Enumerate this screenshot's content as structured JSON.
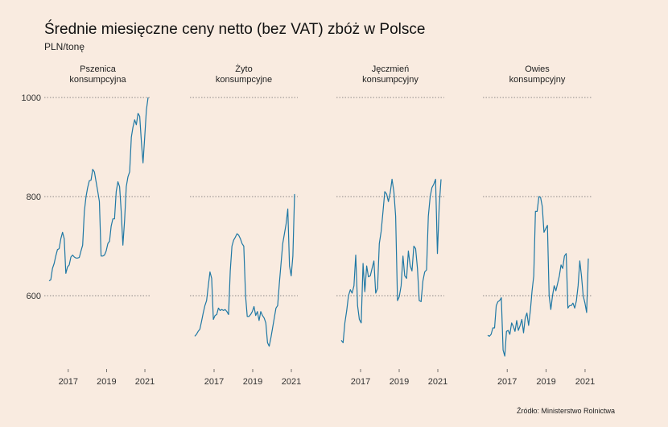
{
  "title": "Średnie miesięczne ceny netto (bez VAT) zbóż w Polsce",
  "subtitle": "PLN/tonę",
  "source": "Źródło: Ministerstwo Rolnictwa",
  "line_color": "#1f78a4",
  "chart_data": {
    "type": "line",
    "x_ticks": [
      "2017",
      "2019",
      "2021"
    ],
    "y_ticks": [
      600,
      800,
      1000
    ],
    "ylim": [
      470,
      1010
    ],
    "x_start": "2016-01",
    "grid": "horizontal dotted",
    "panels": [
      {
        "name_lines": [
          "Pszenica",
          "konsumpcyjna"
        ],
        "values": [
          630,
          632,
          655,
          665,
          680,
          693,
          695,
          715,
          728,
          715,
          645,
          658,
          662,
          678,
          682,
          678,
          676,
          676,
          677,
          690,
          702,
          770,
          800,
          818,
          832,
          833,
          855,
          850,
          830,
          810,
          790,
          680,
          680,
          682,
          690,
          705,
          710,
          740,
          755,
          755,
          810,
          830,
          820,
          770,
          702,
          752,
          820,
          840,
          850,
          920,
          940,
          955,
          945,
          968,
          962,
          910,
          868,
          920,
          975,
          1000
        ]
      },
      {
        "name_lines": [
          "Żyto",
          "konsumpcyjne"
        ],
        "values": [
          518,
          522,
          528,
          532,
          548,
          565,
          580,
          590,
          620,
          648,
          635,
          552,
          560,
          562,
          575,
          570,
          572,
          570,
          572,
          568,
          562,
          650,
          700,
          712,
          718,
          725,
          722,
          715,
          705,
          700,
          600,
          558,
          558,
          562,
          568,
          578,
          560,
          568,
          550,
          568,
          560,
          555,
          545,
          505,
          498,
          515,
          535,
          555,
          575,
          580,
          625,
          665,
          705,
          725,
          745,
          775,
          660,
          640,
          680,
          805
        ]
      },
      {
        "name_lines": [
          "Jęczmień",
          "konsumpcyjny"
        ],
        "values": [
          510,
          505,
          545,
          570,
          600,
          612,
          605,
          620,
          682,
          580,
          552,
          545,
          665,
          608,
          660,
          638,
          640,
          655,
          670,
          605,
          615,
          705,
          730,
          770,
          810,
          805,
          790,
          808,
          835,
          810,
          760,
          590,
          598,
          620,
          680,
          640,
          635,
          690,
          660,
          650,
          700,
          695,
          655,
          590,
          588,
          630,
          648,
          652,
          760,
          800,
          818,
          825,
          835,
          685,
          780,
          835
        ]
      },
      {
        "name_lines": [
          "Owies",
          "konsumpcyjny"
        ],
        "values": [
          520,
          518,
          522,
          535,
          535,
          580,
          588,
          590,
          596,
          490,
          478,
          528,
          530,
          522,
          545,
          538,
          528,
          550,
          530,
          540,
          552,
          525,
          555,
          565,
          540,
          570,
          610,
          640,
          770,
          770,
          800,
          798,
          780,
          728,
          735,
          742,
          600,
          572,
          600,
          620,
          610,
          625,
          640,
          662,
          655,
          680,
          685,
          575,
          580,
          580,
          585,
          575,
          590,
          620,
          670,
          640,
          600,
          585,
          566,
          675
        ]
      }
    ]
  }
}
